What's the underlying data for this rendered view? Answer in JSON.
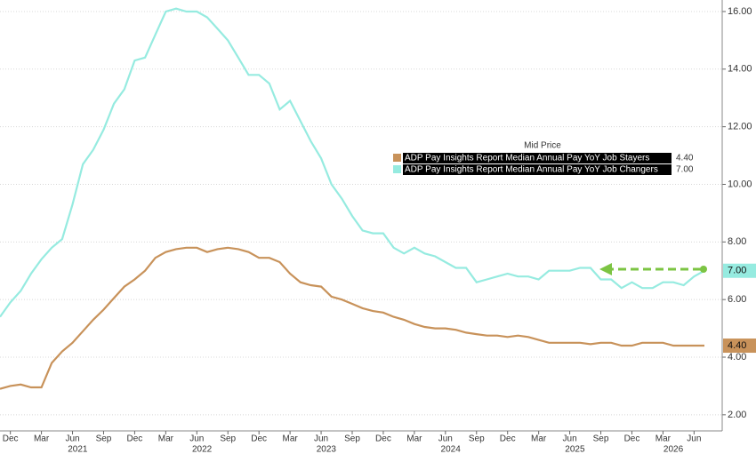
{
  "chart_data": {
    "type": "line",
    "legend_title": "Mid Price",
    "x": [
      "2020-11",
      "2020-12",
      "2021-01",
      "2021-02",
      "2021-03",
      "2021-04",
      "2021-05",
      "2021-06",
      "2021-07",
      "2021-08",
      "2021-09",
      "2021-10",
      "2021-11",
      "2021-12",
      "2022-01",
      "2022-02",
      "2022-03",
      "2022-04",
      "2022-05",
      "2022-06",
      "2022-07",
      "2022-08",
      "2022-09",
      "2022-10",
      "2022-11",
      "2022-12",
      "2023-01",
      "2023-02",
      "2023-03",
      "2023-04",
      "2023-05",
      "2023-06",
      "2023-07",
      "2023-08",
      "2023-09",
      "2023-10",
      "2023-11",
      "2023-12",
      "2024-01",
      "2024-02",
      "2024-03",
      "2024-04",
      "2024-05",
      "2024-06",
      "2024-07",
      "2024-08",
      "2024-09",
      "2024-10",
      "2024-11",
      "2024-12",
      "2025-01",
      "2025-02",
      "2025-03",
      "2025-04",
      "2025-05",
      "2025-06",
      "2025-07",
      "2025-08",
      "2025-09",
      "2025-10",
      "2025-11",
      "2025-12",
      "2026-01",
      "2026-02",
      "2026-03",
      "2026-04",
      "2026-05",
      "2026-06",
      "2026-07"
    ],
    "series": [
      {
        "name": "ADP Pay Insights Report Median Annual Pay YoY Job Stayers",
        "color": "#c8925a",
        "last_value_label": "4.40",
        "values": [
          2.9,
          3.0,
          3.05,
          2.95,
          2.95,
          3.8,
          4.2,
          4.5,
          4.9,
          5.3,
          5.65,
          6.05,
          6.45,
          6.7,
          7.0,
          7.45,
          7.65,
          7.75,
          7.8,
          7.8,
          7.65,
          7.75,
          7.8,
          7.75,
          7.65,
          7.45,
          7.45,
          7.3,
          6.9,
          6.6,
          6.5,
          6.45,
          6.1,
          6.0,
          5.85,
          5.7,
          5.6,
          5.55,
          5.4,
          5.3,
          5.15,
          5.05,
          5.0,
          5.0,
          4.95,
          4.85,
          4.8,
          4.75,
          4.75,
          4.7,
          4.75,
          4.7,
          4.6,
          4.5,
          4.5,
          4.5,
          4.5,
          4.45,
          4.5,
          4.5,
          4.4,
          4.4,
          4.5,
          4.5,
          4.5,
          4.4,
          4.4,
          4.4,
          4.4
        ]
      },
      {
        "name": "ADP Pay Insights Report Median Annual Pay YoY Job Changers",
        "color": "#96ebe0",
        "last_value_label": "7.00",
        "values": [
          5.4,
          5.9,
          6.3,
          6.9,
          7.4,
          7.8,
          8.1,
          9.3,
          10.7,
          11.2,
          11.9,
          12.8,
          13.3,
          14.3,
          14.4,
          15.2,
          16.0,
          16.1,
          16.0,
          16.0,
          15.8,
          15.4,
          15.0,
          14.4,
          13.8,
          13.8,
          13.5,
          12.6,
          12.9,
          12.2,
          11.5,
          10.9,
          10.0,
          9.5,
          8.9,
          8.4,
          8.3,
          8.3,
          7.8,
          7.6,
          7.8,
          7.6,
          7.5,
          7.3,
          7.1,
          7.1,
          6.6,
          6.7,
          6.8,
          6.9,
          6.8,
          6.8,
          6.7,
          7.0,
          7.0,
          7.0,
          7.1,
          7.1,
          6.7,
          6.7,
          6.4,
          6.6,
          6.4,
          6.4,
          6.6,
          6.6,
          6.5,
          6.8,
          7.0
        ]
      }
    ],
    "xticks": [
      {
        "value": "2020-12",
        "label": "Dec"
      },
      {
        "value": "2021-03",
        "label": "Mar"
      },
      {
        "value": "2021-06",
        "label": "Jun"
      },
      {
        "value": "2021-09",
        "label": "Sep"
      },
      {
        "value": "2021-12",
        "label": "Dec"
      },
      {
        "value": "2022-03",
        "label": "Mar"
      },
      {
        "value": "2022-06",
        "label": "Jun"
      },
      {
        "value": "2022-09",
        "label": "Sep"
      },
      {
        "value": "2022-12",
        "label": "Dec"
      },
      {
        "value": "2023-03",
        "label": "Mar"
      },
      {
        "value": "2023-06",
        "label": "Jun"
      },
      {
        "value": "2023-09",
        "label": "Sep"
      },
      {
        "value": "2023-12",
        "label": "Dec"
      },
      {
        "value": "2024-03",
        "label": "Mar"
      },
      {
        "value": "2024-06",
        "label": "Jun"
      },
      {
        "value": "2024-09",
        "label": "Sep"
      },
      {
        "value": "2024-12",
        "label": "Dec"
      },
      {
        "value": "2025-03",
        "label": "Mar"
      },
      {
        "value": "2025-06",
        "label": "Jun"
      },
      {
        "value": "2025-09",
        "label": "Sep"
      },
      {
        "value": "2025-12",
        "label": "Dec"
      },
      {
        "value": "2026-03",
        "label": "Mar"
      },
      {
        "value": "2026-06",
        "label": "Jun"
      }
    ],
    "year_labels": [
      2021,
      2022,
      2023,
      2024,
      2025,
      2026
    ],
    "ylim": [
      1.44,
      16.4
    ],
    "yticks": [
      {
        "value": 2,
        "label": "2.00"
      },
      {
        "value": 4,
        "label": "4.00"
      },
      {
        "value": 6,
        "label": "6.00"
      },
      {
        "value": 8,
        "label": "8.00"
      },
      {
        "value": 10,
        "label": "10.00"
      },
      {
        "value": 12,
        "label": "12.00"
      },
      {
        "value": 14,
        "label": "14.00"
      },
      {
        "value": 16,
        "label": "16.00"
      }
    ],
    "grid": true
  }
}
